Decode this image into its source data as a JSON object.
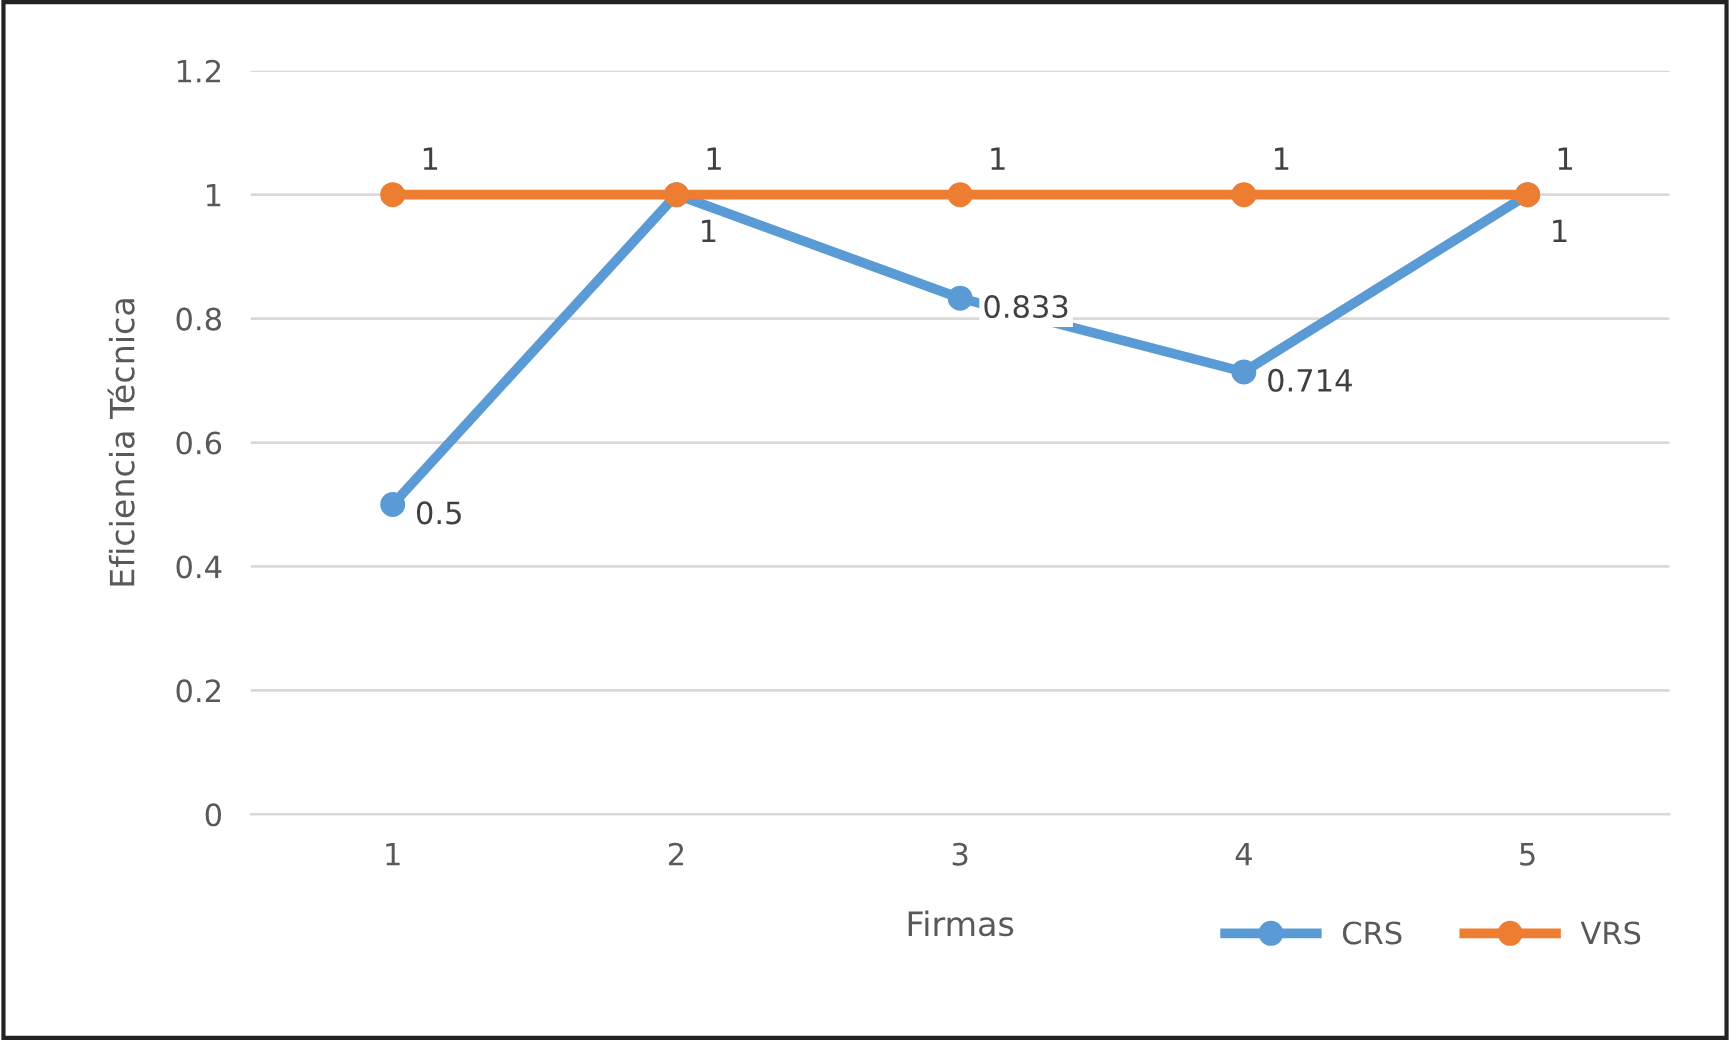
{
  "chart_data": {
    "type": "line",
    "xlabel": "Firmas",
    "ylabel": "Eficiencia Técnica",
    "categories": [
      "1",
      "2",
      "3",
      "4",
      "5"
    ],
    "series": [
      {
        "name": "CRS",
        "color": "#5b9bd5",
        "values": [
          0.5,
          1,
          0.833,
          0.714,
          1
        ],
        "value_labels": [
          "0.5",
          "1",
          "0.833",
          "0.714",
          "1"
        ]
      },
      {
        "name": "VRS",
        "color": "#ed7d31",
        "values": [
          1,
          1,
          1,
          1,
          1
        ],
        "value_labels": [
          "1",
          "1",
          "1",
          "1",
          "1"
        ]
      }
    ],
    "ylim": [
      0,
      1.2
    ],
    "yticks": [
      0,
      0.2,
      0.4,
      0.6,
      0.8,
      1,
      1.2
    ],
    "grid": "y",
    "legend": "bottom right",
    "marker": "circle",
    "line_style": "solid"
  }
}
